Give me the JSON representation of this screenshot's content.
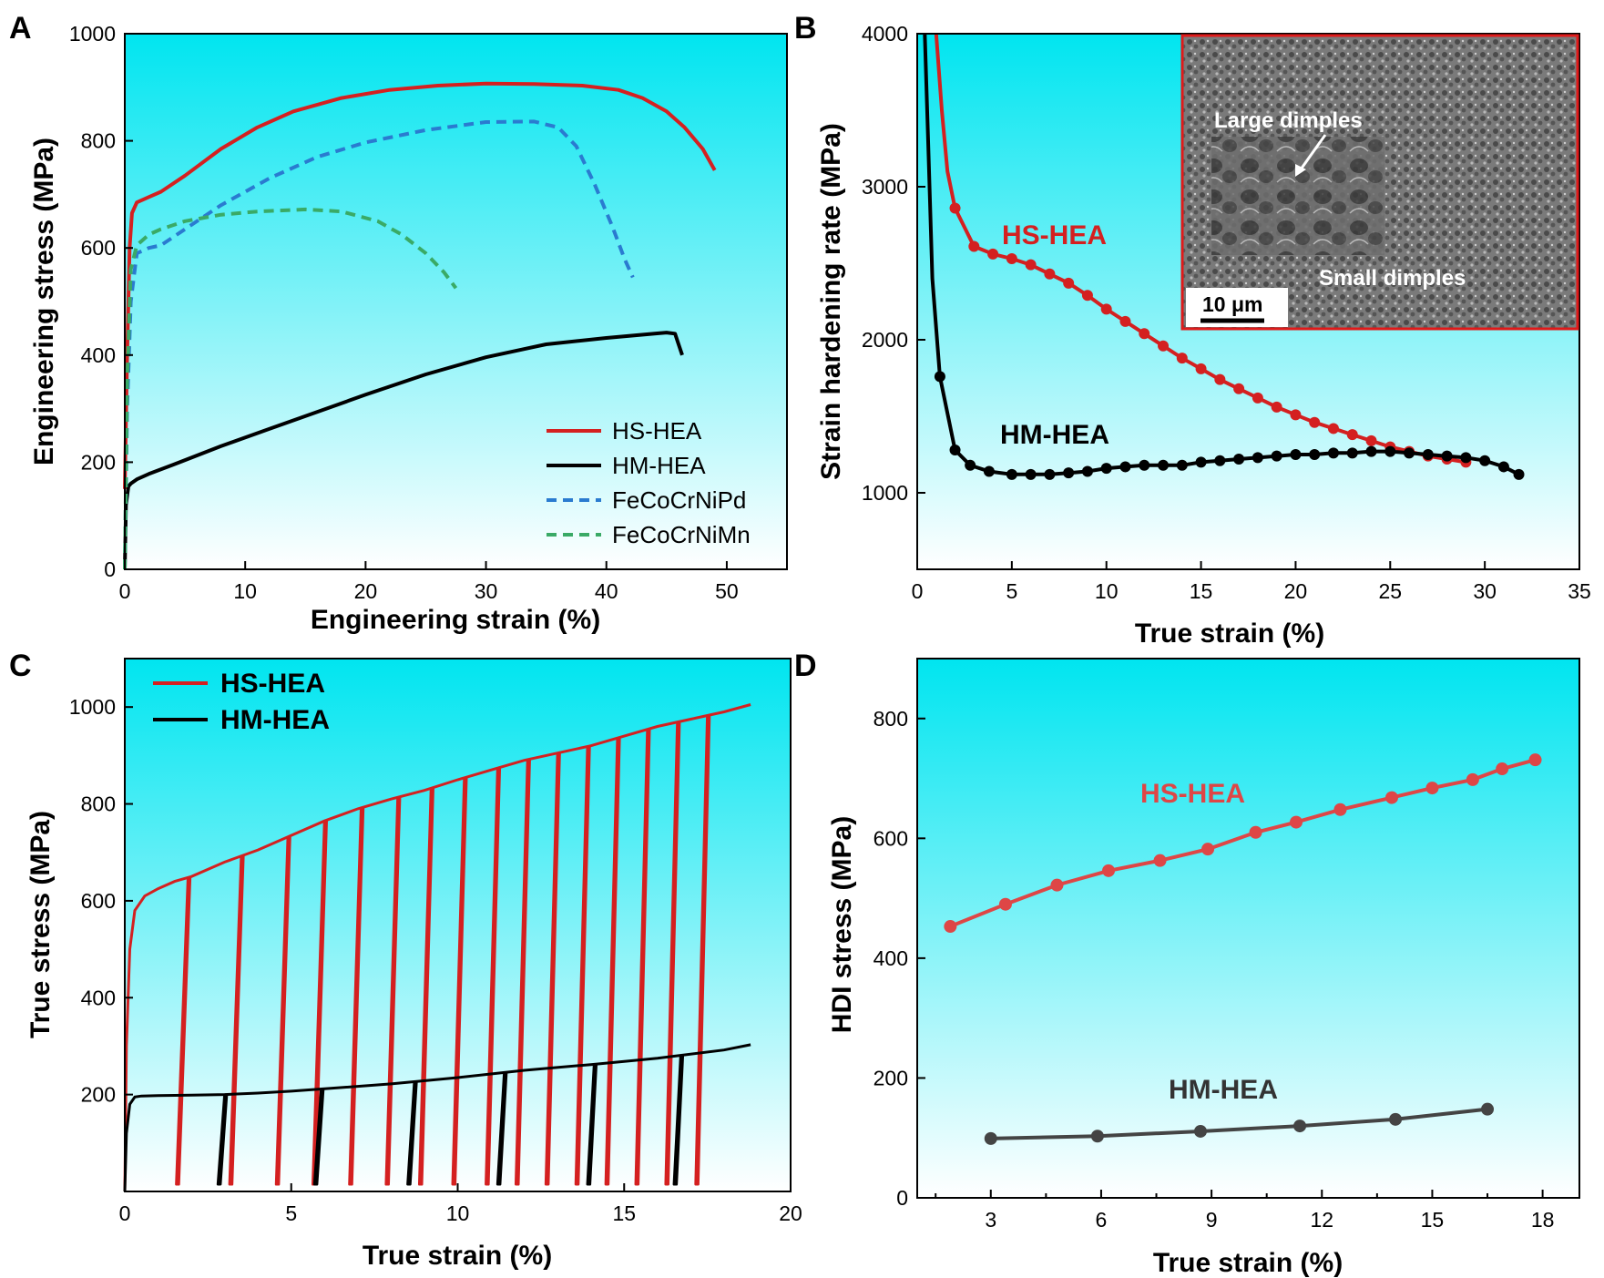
{
  "colors": {
    "hs": "#d42020",
    "hm": "#000000",
    "pd": "#2a7bd0",
    "mn": "#3aaa66",
    "hdi_hs": "#de4646",
    "hdi_hm": "#444444",
    "bg_top": "#00e5f0",
    "bg_bottom": "#ffffff",
    "inset_border": "#e01a1a"
  },
  "chart_data": [
    {
      "panel": "A",
      "type": "line",
      "xlabel": "Engineering strain (%)",
      "ylabel": "Engineering stress (MPa)",
      "xlim": [
        0,
        55
      ],
      "ylim": [
        0,
        1000
      ],
      "xticks": [
        0,
        10,
        20,
        30,
        40,
        50
      ],
      "yticks": [
        0,
        200,
        400,
        600,
        800,
        1000
      ],
      "legend": "bottom-right",
      "series": [
        {
          "name": "HS-HEA",
          "color": "hs",
          "dash": false,
          "x": [
            0,
            0.2,
            0.4,
            0.6,
            1.0,
            2,
            3,
            5,
            8,
            11,
            14,
            18,
            22,
            26,
            30,
            34,
            38,
            41,
            43,
            45,
            46.5,
            48,
            49
          ],
          "y": [
            150,
            400,
            600,
            665,
            685,
            695,
            705,
            735,
            785,
            825,
            855,
            880,
            895,
            903,
            907,
            906,
            903,
            895,
            880,
            855,
            825,
            785,
            745
          ]
        },
        {
          "name": "HM-HEA",
          "color": "hm",
          "dash": false,
          "x": [
            0,
            0.1,
            0.3,
            0.5,
            1,
            2,
            4,
            8,
            12,
            16,
            20,
            25,
            30,
            35,
            40,
            44,
            45,
            45.7,
            46.0,
            46.3
          ],
          "y": [
            0,
            120,
            155,
            160,
            168,
            178,
            195,
            230,
            262,
            294,
            326,
            364,
            396,
            420,
            432,
            440,
            442,
            440,
            420,
            400
          ]
        },
        {
          "name": "FeCoCrNiPd",
          "color": "pd",
          "dash": true,
          "x": [
            0,
            0.2,
            0.5,
            1,
            2,
            3,
            5,
            8,
            12,
            16,
            20,
            25,
            30,
            34,
            36,
            37.5,
            39,
            40.5,
            41.5,
            42.2
          ],
          "y": [
            0,
            300,
            500,
            590,
            600,
            605,
            635,
            680,
            730,
            770,
            797,
            820,
            835,
            836,
            825,
            790,
            720,
            640,
            580,
            545
          ]
        },
        {
          "name": "FeCoCrNiMn",
          "color": "mn",
          "dash": true,
          "x": [
            0,
            0.2,
            0.5,
            1,
            2,
            3,
            5,
            8,
            11,
            15,
            18,
            21,
            23,
            25,
            26.5,
            27.5
          ],
          "y": [
            0,
            350,
            560,
            605,
            625,
            635,
            650,
            662,
            668,
            672,
            668,
            650,
            625,
            590,
            555,
            525
          ]
        }
      ]
    },
    {
      "panel": "B",
      "type": "line",
      "xlabel": "True strain (%)",
      "ylabel": "Strain hardening rate (MPa)",
      "xlim": [
        0,
        35
      ],
      "ylim": [
        500,
        4000
      ],
      "xticks": [
        0,
        5,
        10,
        15,
        20,
        25,
        30,
        35
      ],
      "yticks": [
        1000,
        2000,
        3000,
        4000
      ],
      "inset_labels": [
        "Large dimples",
        "Small dimples",
        "10 μm"
      ],
      "annotations": [
        "HS-HEA",
        "HM-HEA"
      ],
      "series": [
        {
          "name": "HS-HEA",
          "color": "hs",
          "x": [
            1.0,
            1.3,
            1.6,
            2.0,
            3.0,
            4.0,
            5.0,
            6.0,
            7.0,
            8.0,
            9.0,
            10.0,
            11.0,
            12.0,
            13.0,
            14.0,
            15.0,
            16.0,
            17.0,
            18.0,
            19.0,
            20.0,
            21.0,
            22.0,
            23.0,
            24.0,
            25.0,
            26.0,
            27.0,
            28.0,
            29.0
          ],
          "y": [
            4000,
            3500,
            3100,
            2860,
            2610,
            2560,
            2530,
            2490,
            2430,
            2370,
            2290,
            2200,
            2120,
            2040,
            1960,
            1880,
            1810,
            1740,
            1680,
            1620,
            1560,
            1510,
            1460,
            1420,
            1380,
            1340,
            1300,
            1270,
            1240,
            1220,
            1200
          ],
          "markers_from": 3
        },
        {
          "name": "HM-HEA",
          "color": "hm",
          "x": [
            0.4,
            0.6,
            0.8,
            1.2,
            2.0,
            2.8,
            3.8,
            5.0,
            6.0,
            7.0,
            8.0,
            9.0,
            10.0,
            11.0,
            12.0,
            13.0,
            14.0,
            15.0,
            16.0,
            17.0,
            18.0,
            19.0,
            20.0,
            21.0,
            22.0,
            23.0,
            24.0,
            25.0,
            26.0,
            27.0,
            28.0,
            29.0,
            30.0,
            31.0,
            31.8
          ],
          "y": [
            4000,
            3200,
            2400,
            1760,
            1280,
            1180,
            1140,
            1120,
            1120,
            1120,
            1130,
            1140,
            1160,
            1170,
            1180,
            1180,
            1180,
            1200,
            1210,
            1220,
            1230,
            1240,
            1250,
            1250,
            1260,
            1260,
            1270,
            1270,
            1260,
            1250,
            1240,
            1230,
            1210,
            1170,
            1120
          ],
          "markers_from": 3
        }
      ]
    },
    {
      "panel": "C",
      "type": "line",
      "xlabel": "True strain (%)",
      "ylabel": "True stress (MPa)",
      "xlim": [
        0,
        20
      ],
      "ylim": [
        0,
        1100
      ],
      "xticks": [
        0,
        5,
        10,
        15,
        20
      ],
      "yticks": [
        200,
        400,
        600,
        800,
        1000
      ],
      "legend": "top-left",
      "series": [
        {
          "name": "HS-HEA",
          "color": "hs",
          "envelope_x": [
            0,
            0.05,
            0.15,
            0.3,
            0.6,
            1.0,
            1.5,
            2,
            3,
            4,
            5,
            6,
            7,
            8,
            9,
            10,
            11,
            12,
            13,
            14,
            15,
            16,
            17,
            18,
            18.8
          ],
          "envelope_y": [
            0,
            300,
            500,
            580,
            610,
            625,
            640,
            650,
            680,
            705,
            735,
            765,
            790,
            810,
            828,
            850,
            870,
            890,
            905,
            920,
            940,
            960,
            975,
            990,
            1005
          ],
          "unload_at": [
            1.9,
            3.5,
            4.9,
            6.0,
            7.1,
            8.2,
            9.2,
            10.2,
            11.2,
            12.1,
            13.0,
            13.9,
            14.8,
            15.7,
            16.6,
            17.5
          ],
          "unload_stress": 15,
          "unload_offset": 0.35
        },
        {
          "name": "HM-HEA",
          "color": "hm",
          "envelope_x": [
            0,
            0.05,
            0.15,
            0.3,
            0.5,
            1,
            2,
            3,
            4,
            5,
            6,
            8,
            10,
            12,
            14,
            16,
            18,
            18.8
          ],
          "envelope_y": [
            0,
            120,
            180,
            195,
            197,
            198,
            199,
            200,
            203,
            207,
            212,
            222,
            235,
            250,
            262,
            275,
            292,
            303
          ],
          "unload_at": [
            3.0,
            5.9,
            8.7,
            11.4,
            14.1,
            16.7
          ],
          "unload_stress": 15,
          "unload_offset": 0.2
        }
      ]
    },
    {
      "panel": "D",
      "type": "line",
      "xlabel": "True strain (%)",
      "ylabel": "HDI stress (MPa)",
      "xlim": [
        1,
        19
      ],
      "ylim": [
        0,
        900
      ],
      "xticks": [
        3,
        6,
        9,
        12,
        15,
        18
      ],
      "yticks": [
        0,
        200,
        400,
        600,
        800
      ],
      "annotations": [
        "HS-HEA",
        "HM-HEA"
      ],
      "series": [
        {
          "name": "HS-HEA",
          "color": "hdi_hs",
          "x": [
            1.9,
            3.4,
            4.8,
            6.2,
            7.6,
            8.9,
            10.2,
            11.3,
            12.5,
            13.9,
            15.0,
            16.1,
            16.9,
            17.8
          ],
          "y": [
            453,
            490,
            522,
            546,
            563,
            582,
            610,
            627,
            648,
            668,
            684,
            698,
            716,
            731
          ]
        },
        {
          "name": "HM-HEA",
          "color": "hdi_hm",
          "x": [
            3.0,
            5.9,
            8.7,
            11.4,
            14.0,
            16.5
          ],
          "y": [
            99,
            103,
            111,
            120,
            131,
            148
          ]
        }
      ]
    }
  ],
  "panels": {
    "A": {
      "letter": "A",
      "xlabel": "Engineering strain (%)",
      "ylabel": "Engineering stress (MPa)",
      "legend": [
        "HS-HEA",
        "HM-HEA",
        "FeCoCrNiPd",
        "FeCoCrNiMn"
      ]
    },
    "B": {
      "letter": "B",
      "xlabel": "True strain (%)",
      "ylabel": "Strain hardening rate (MPa)",
      "label_hs": "HS-HEA",
      "label_hm": "HM-HEA",
      "inset_large": "Large dimples",
      "inset_small": "Small dimples",
      "inset_scale": "10 μm"
    },
    "C": {
      "letter": "C",
      "xlabel": "True strain (%)",
      "ylabel": "True stress (MPa)",
      "legend": [
        "HS-HEA",
        "HM-HEA"
      ]
    },
    "D": {
      "letter": "D",
      "xlabel": "True strain (%)",
      "ylabel": "HDI stress (MPa)",
      "label_hs": "HS-HEA",
      "label_hm": "HM-HEA"
    }
  }
}
